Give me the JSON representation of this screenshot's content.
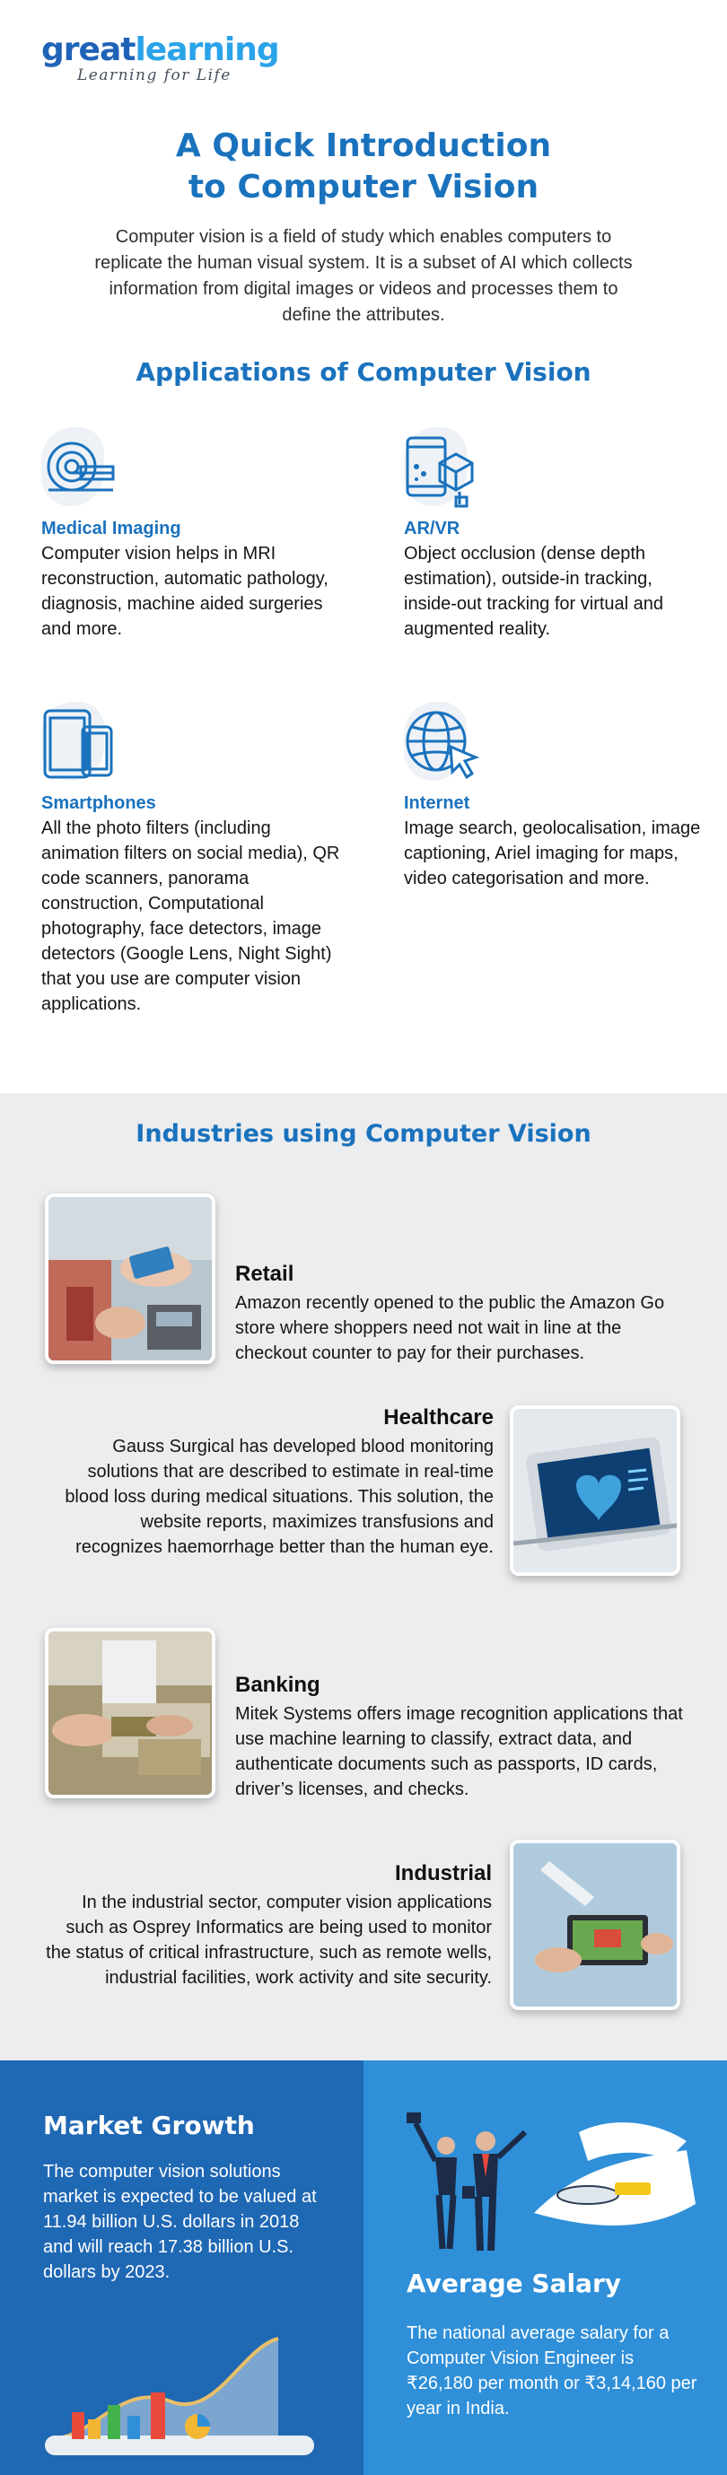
{
  "logo": {
    "brand_part1": "great",
    "brand_part2": "learning",
    "tagline": "Learning for Life"
  },
  "title": {
    "line1": "A Quick Introduction",
    "line2": "to Computer Vision"
  },
  "intro": "Computer vision is a field of study which enables computers to replicate the human visual system. It is a subset of AI which collects information from digital images or videos and processes them to define the attributes.",
  "applications": {
    "heading": "Applications of Computer Vision",
    "items": [
      {
        "name": "Medical Imaging",
        "icon": "mri-scanner-icon",
        "desc": "Computer vision helps in MRI reconstruction, automatic pathology, diagnosis, machine aided surgeries and more."
      },
      {
        "name": "AR/VR",
        "icon": "ar-vr-phone-cube-icon",
        "desc": "Object occlusion (dense depth estimation), outside-in tracking, inside-out tracking for virtual and augmented reality."
      },
      {
        "name": "Smartphones",
        "icon": "smartphone-tablet-icon",
        "desc": "All the photo filters (including animation filters on social media), QR code scanners, panorama construction, Computational photography, face detectors, image detectors (Google Lens, Night Sight) that you use are computer vision applications."
      },
      {
        "name": "Internet",
        "icon": "globe-cursor-icon",
        "desc": "Image search, geolocalisation, image captioning, Ariel imaging for maps, video categorisation and more."
      }
    ]
  },
  "industries": {
    "heading": "Industries using Computer Vision",
    "items": [
      {
        "name": "Retail",
        "desc": "Amazon recently opened to the public the Amazon Go store where shoppers need not wait in line at the checkout counter to pay for their purchases."
      },
      {
        "name": "Healthcare",
        "desc": "Gauss Surgical has developed blood monitoring solutions that are described to estimate in real-time blood loss during medical situations. This solution, the website reports, maximizes transfusions and recognizes haemorrhage better than the human eye."
      },
      {
        "name": "Banking",
        "desc": "Mitek Systems offers image recognition applications that use machine learning to classify, extract data, and authenticate documents such as passports, ID cards, driver’s licenses, and checks."
      },
      {
        "name": "Industrial",
        "desc": "In the industrial sector, computer vision applications such as Osprey Informatics are being used to monitor the status of critical infrastructure, such as remote wells, industrial facilities, work activity and site security."
      }
    ]
  },
  "market": {
    "title": "Market Growth",
    "text": "The computer vision solutions market is expected to be valued at 11.94 billion U.S. dollars in 2018 and will reach 17.38 billion U.S. dollars by 2023."
  },
  "salary": {
    "title": "Average Salary",
    "text": "The national average salary for a Computer Vision Engineer is ₹26,180 per month or ₹3,14,160 per year in India."
  },
  "colors": {
    "primary": "#1a72bd",
    "logo_dark": "#1f63b8",
    "logo_light": "#2aa3e8",
    "band": "#ecedef",
    "market_bg": "#1f68b4",
    "salary_bg": "#2f8fd8"
  }
}
